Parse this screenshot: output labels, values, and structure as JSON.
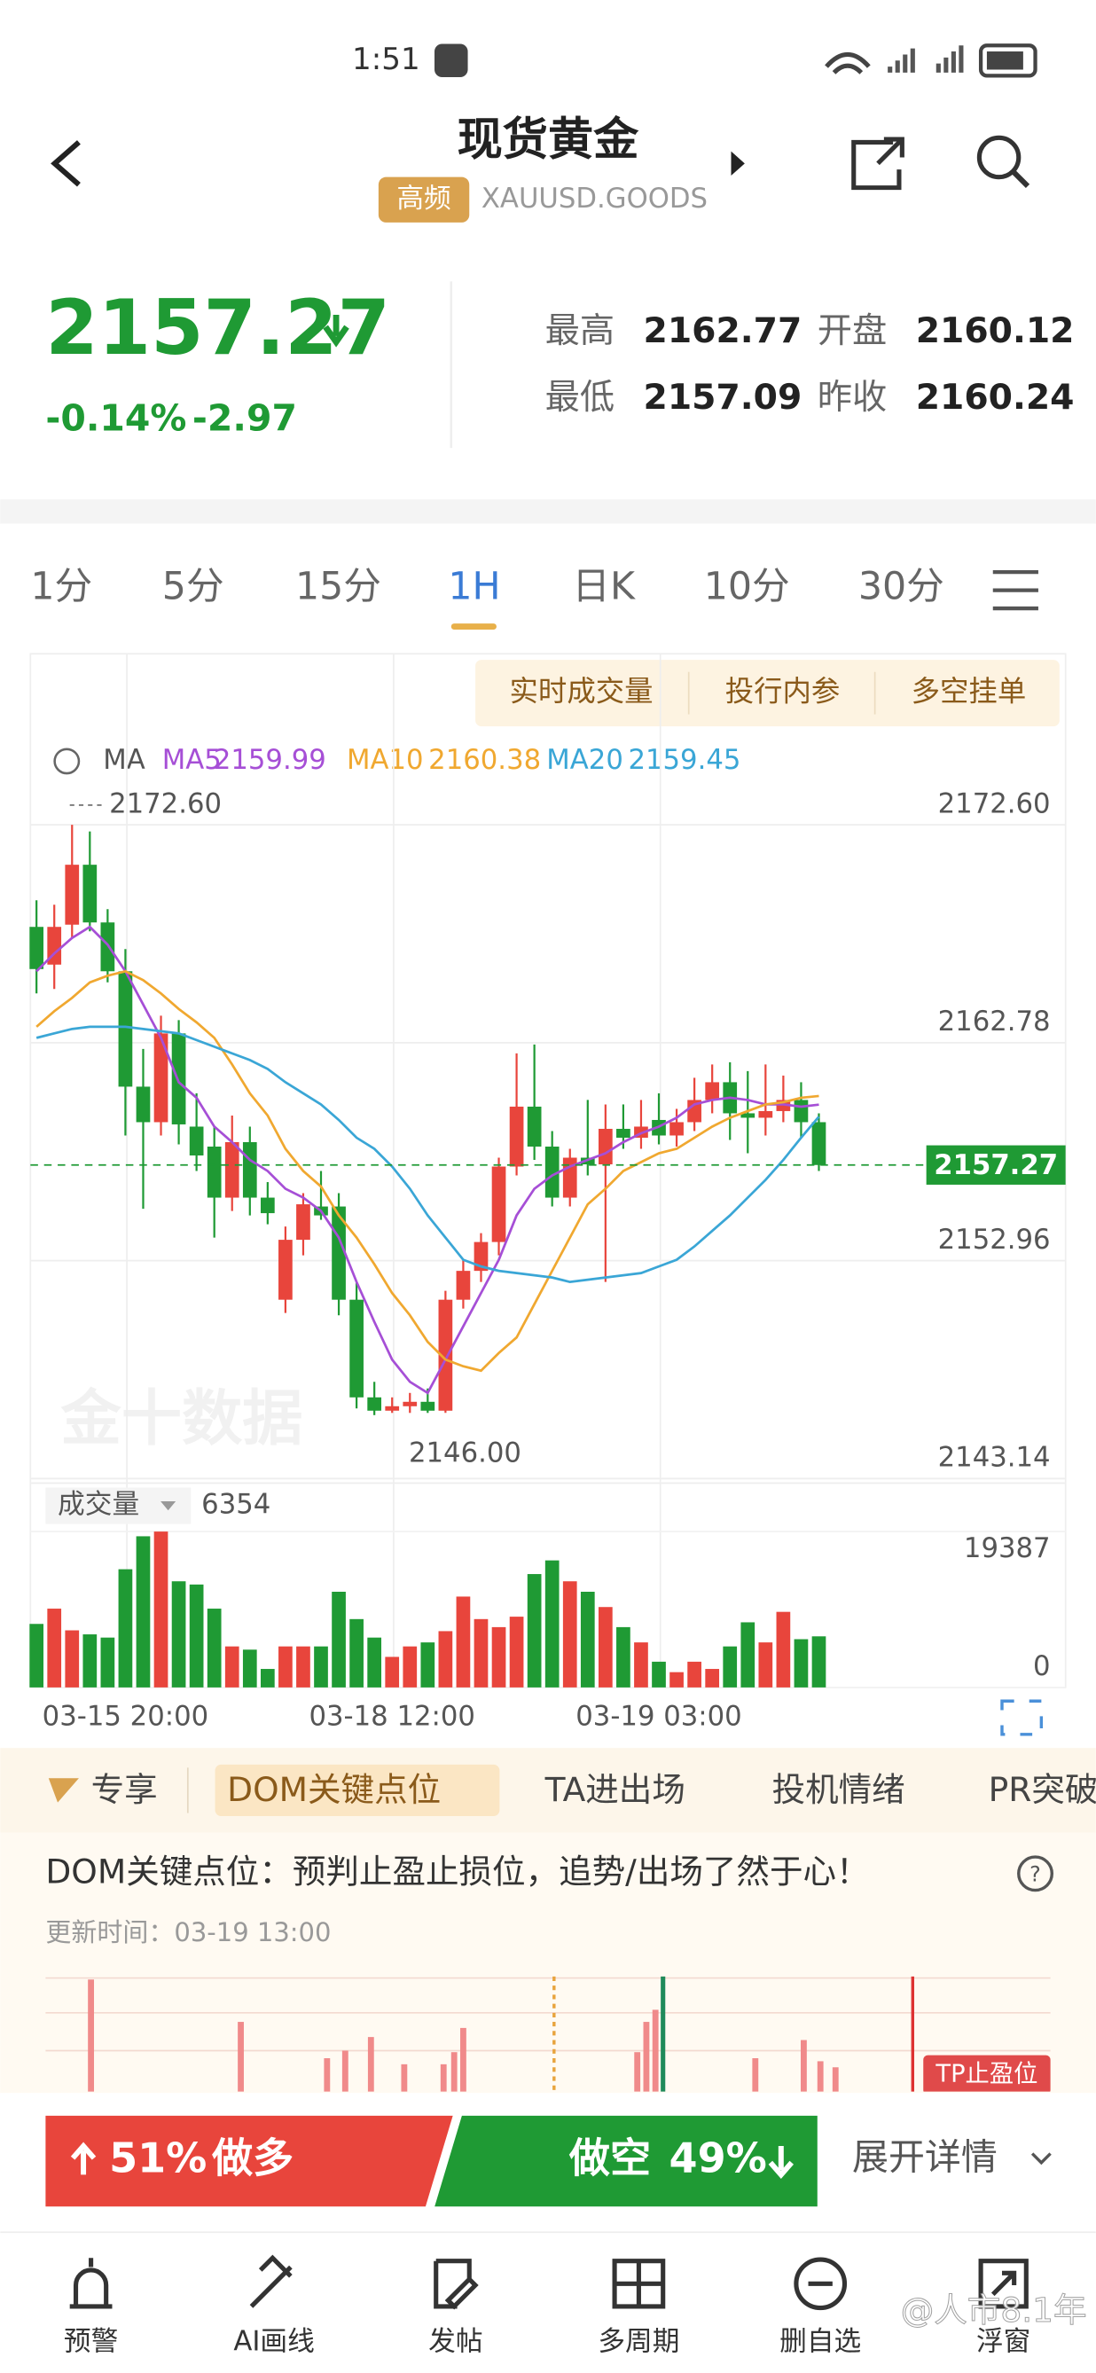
{
  "status_bar": {
    "time": "1:51"
  },
  "header": {
    "title": "现货黄金",
    "badge": "高频",
    "symbol": "XAUUSD.GOODS"
  },
  "quote": {
    "price": "2157.27",
    "change_pct": "-0.14%",
    "change": "-2.97",
    "stats": [
      {
        "label": "最高",
        "value": "2162.77"
      },
      {
        "label": "开盘",
        "value": "2160.12"
      },
      {
        "label": "最低",
        "value": "2157.09"
      },
      {
        "label": "昨收",
        "value": "2160.24"
      }
    ]
  },
  "period_tabs": {
    "items": [
      "1分",
      "5分",
      "15分",
      "1H",
      "日K",
      "10分",
      "30分"
    ],
    "active": 3
  },
  "chart_buttons": [
    "实时成交量",
    "投行内参",
    "多空挂单"
  ],
  "chart_data": {
    "type": "candlestick",
    "ma_label": "MA",
    "watermark": "金十数据",
    "up_color": "#e8453c",
    "down_color": "#1f9a34",
    "grid": true,
    "categories": [
      null,
      null,
      null,
      null,
      null,
      "03-15 20:00",
      null,
      null,
      null,
      null,
      null,
      null,
      null,
      null,
      null,
      null,
      null,
      null,
      null,
      null,
      "03-18 12:00",
      null,
      null,
      null,
      null,
      null,
      null,
      null,
      null,
      null,
      null,
      null,
      null,
      null,
      null,
      "03-19 03:00",
      null,
      null,
      null,
      null,
      null,
      null,
      null,
      null,
      null
    ],
    "candles": [
      {
        "open": 2168.0,
        "high": 2169.2,
        "low": 2165.0,
        "close": 2166.1
      },
      {
        "open": 2166.3,
        "high": 2169.0,
        "low": 2165.2,
        "close": 2168.0
      },
      {
        "open": 2168.1,
        "high": 2172.6,
        "low": 2167.5,
        "close": 2170.8
      },
      {
        "open": 2170.8,
        "high": 2172.3,
        "low": 2167.8,
        "close": 2168.2
      },
      {
        "open": 2168.2,
        "high": 2168.8,
        "low": 2165.5,
        "close": 2166.0
      },
      {
        "open": 2166.0,
        "high": 2167.0,
        "low": 2158.6,
        "close": 2160.8
      },
      {
        "open": 2160.8,
        "high": 2162.5,
        "low": 2155.3,
        "close": 2159.2
      },
      {
        "open": 2159.2,
        "high": 2164.0,
        "low": 2158.6,
        "close": 2163.2
      },
      {
        "open": 2163.2,
        "high": 2163.8,
        "low": 2158.2,
        "close": 2159.1
      },
      {
        "open": 2159.0,
        "high": 2160.5,
        "low": 2157.0,
        "close": 2157.7
      },
      {
        "open": 2158.1,
        "high": 2159.0,
        "low": 2154.0,
        "close": 2155.8
      },
      {
        "open": 2155.8,
        "high": 2159.5,
        "low": 2155.2,
        "close": 2158.3
      },
      {
        "open": 2158.3,
        "high": 2159.0,
        "low": 2155.0,
        "close": 2155.8
      },
      {
        "open": 2155.8,
        "high": 2156.5,
        "low": 2154.6,
        "close": 2155.1
      },
      {
        "open": 2151.2,
        "high": 2154.5,
        "low": 2150.6,
        "close": 2153.9
      },
      {
        "open": 2153.9,
        "high": 2156.0,
        "low": 2153.2,
        "close": 2155.5
      },
      {
        "open": 2155.4,
        "high": 2157.0,
        "low": 2154.8,
        "close": 2155.0
      },
      {
        "open": 2155.4,
        "high": 2156.0,
        "low": 2150.5,
        "close": 2151.2
      },
      {
        "open": 2151.2,
        "high": 2152.0,
        "low": 2146.3,
        "close": 2146.8
      },
      {
        "open": 2146.8,
        "high": 2147.5,
        "low": 2146.0,
        "close": 2146.2
      },
      {
        "open": 2146.2,
        "high": 2146.8,
        "low": 2146.1,
        "close": 2146.4
      },
      {
        "open": 2146.4,
        "high": 2147.0,
        "low": 2146.1,
        "close": 2146.6
      },
      {
        "open": 2146.6,
        "high": 2147.2,
        "low": 2146.1,
        "close": 2146.2
      },
      {
        "open": 2146.2,
        "high": 2151.6,
        "low": 2146.1,
        "close": 2151.2
      },
      {
        "open": 2151.2,
        "high": 2153.0,
        "low": 2150.8,
        "close": 2152.5
      },
      {
        "open": 2152.5,
        "high": 2154.2,
        "low": 2152.0,
        "close": 2153.8
      },
      {
        "open": 2153.8,
        "high": 2157.6,
        "low": 2153.2,
        "close": 2157.2
      },
      {
        "open": 2157.2,
        "high": 2162.3,
        "low": 2156.8,
        "close": 2159.9
      },
      {
        "open": 2159.9,
        "high": 2162.7,
        "low": 2157.5,
        "close": 2158.1
      },
      {
        "open": 2158.1,
        "high": 2158.8,
        "low": 2155.4,
        "close": 2155.8
      },
      {
        "open": 2155.8,
        "high": 2158.0,
        "low": 2155.4,
        "close": 2157.6
      },
      {
        "open": 2157.6,
        "high": 2160.2,
        "low": 2156.8,
        "close": 2157.3
      },
      {
        "open": 2157.3,
        "high": 2160.0,
        "low": 2152.0,
        "close": 2158.9
      },
      {
        "open": 2158.9,
        "high": 2160.0,
        "low": 2158.0,
        "close": 2158.5
      },
      {
        "open": 2158.5,
        "high": 2160.2,
        "low": 2158.0,
        "close": 2159.0
      },
      {
        "open": 2159.3,
        "high": 2160.5,
        "low": 2158.2,
        "close": 2158.6
      },
      {
        "open": 2158.6,
        "high": 2159.8,
        "low": 2158.1,
        "close": 2159.2
      },
      {
        "open": 2159.2,
        "high": 2161.2,
        "low": 2158.8,
        "close": 2160.2
      },
      {
        "open": 2160.2,
        "high": 2161.8,
        "low": 2159.6,
        "close": 2161.0
      },
      {
        "open": 2161.0,
        "high": 2161.9,
        "low": 2158.4,
        "close": 2159.6
      },
      {
        "open": 2159.6,
        "high": 2161.5,
        "low": 2157.8,
        "close": 2159.4
      },
      {
        "open": 2159.4,
        "high": 2161.8,
        "low": 2158.6,
        "close": 2159.7
      },
      {
        "open": 2159.7,
        "high": 2161.3,
        "low": 2159.2,
        "close": 2160.2
      },
      {
        "open": 2160.2,
        "high": 2161.0,
        "low": 2158.5,
        "close": 2159.2
      },
      {
        "open": 2159.2,
        "high": 2159.6,
        "low": 2157.0,
        "close": 2157.27
      }
    ],
    "series": [
      {
        "name": "MA5",
        "color": "#a64fd6",
        "values": [
          2166.0,
          2166.8,
          2167.5,
          2168.0,
          2167.2,
          2166.0,
          2164.5,
          2163.0,
          2161.0,
          2160.3,
          2159.0,
          2158.3,
          2157.5,
          2157.0,
          2156.2,
          2155.8,
          2155.2,
          2154.0,
          2152.0,
          2150.2,
          2148.5,
          2147.5,
          2147.0,
          2148.5,
          2150.0,
          2151.5,
          2153.0,
          2155.0,
          2156.2,
          2156.8,
          2157.2,
          2157.5,
          2157.8,
          2158.3,
          2158.7,
          2159.0,
          2159.4,
          2160.0,
          2160.2,
          2160.3,
          2160.2,
          2160.0,
          2160.0,
          2159.9,
          2159.99
        ]
      },
      {
        "name": "MA10",
        "color": "#f0a830",
        "values": [
          2163.5,
          2164.2,
          2164.8,
          2165.5,
          2165.8,
          2166.0,
          2165.6,
          2165.0,
          2164.3,
          2163.7,
          2163.0,
          2161.8,
          2160.5,
          2159.5,
          2158.0,
          2157.0,
          2156.3,
          2155.0,
          2154.0,
          2152.8,
          2151.5,
          2150.5,
          2149.3,
          2148.5,
          2148.2,
          2148.0,
          2148.8,
          2149.5,
          2151.0,
          2152.5,
          2154.0,
          2155.5,
          2156.2,
          2157.0,
          2157.4,
          2157.8,
          2158.0,
          2158.5,
          2159.0,
          2159.4,
          2159.7,
          2160.0,
          2160.1,
          2160.3,
          2160.38
        ]
      },
      {
        "name": "MA20",
        "color": "#3aa6d6",
        "values": [
          2163.0,
          2163.2,
          2163.4,
          2163.5,
          2163.5,
          2163.5,
          2163.4,
          2163.3,
          2163.2,
          2162.9,
          2162.6,
          2162.3,
          2162.0,
          2161.6,
          2161.0,
          2160.5,
          2160.0,
          2159.3,
          2158.5,
          2158.0,
          2157.2,
          2156.2,
          2155.0,
          2154.0,
          2153.0,
          2152.7,
          2152.5,
          2152.4,
          2152.3,
          2152.2,
          2152.0,
          2152.1,
          2152.2,
          2152.3,
          2152.4,
          2152.7,
          2153.0,
          2153.6,
          2154.3,
          2155.0,
          2155.8,
          2156.6,
          2157.5,
          2158.5,
          2159.45
        ]
      }
    ],
    "ylim": [
      2143.14,
      2172.6
    ],
    "yticks": [
      {
        "value": 2172.6,
        "label": "2172.60"
      },
      {
        "value": 2162.78,
        "label": "2162.78"
      },
      {
        "value": 2152.96,
        "label": "2152.96"
      },
      {
        "value": 2143.14,
        "label": "2143.14"
      }
    ],
    "last_price": 2157.27,
    "high_label": {
      "value": 2172.6,
      "label": "2172.60"
    },
    "low_label": {
      "value": 2146,
      "label": "2146.00"
    },
    "volume": {
      "label": "成交量",
      "ylim": [
        0,
        19387
      ],
      "yticks": [
        0,
        19387
      ],
      "values": [
        7900,
        9800,
        7100,
        6600,
        6200,
        14700,
        18800,
        19387,
        13200,
        12800,
        9800,
        5100,
        4700,
        2300,
        5100,
        5100,
        5100,
        11900,
        8500,
        6200,
        3800,
        5100,
        5600,
        7000,
        11300,
        8500,
        7500,
        8800,
        14100,
        15800,
        13200,
        11900,
        10000,
        7500,
        5600,
        3200,
        1900,
        3200,
        2300,
        5100,
        8100,
        5600,
        9400,
        6000,
        6354
      ]
    }
  },
  "feature_tabs": {
    "items": [
      "专享",
      "DOM关键点位",
      "TA进出场",
      "投机情绪",
      "PR突破"
    ],
    "active": 1
  },
  "dom": {
    "title": "DOM关键点位：预判止盈止损位，追势/出场了然于心！",
    "updated": "更新时间：03-19 13:00",
    "tp_label": "TP止盈位"
  },
  "sentiment": {
    "long": 51,
    "long_label": "51%",
    "long_text": "做多",
    "short": 49,
    "short_label": "49%",
    "short_text": "做空",
    "details": "展开详情"
  },
  "nav": [
    "预警",
    "AI画线",
    "发帖",
    "多周期",
    "删自选",
    "浮窗"
  ],
  "overlay": "@人市8.1年"
}
